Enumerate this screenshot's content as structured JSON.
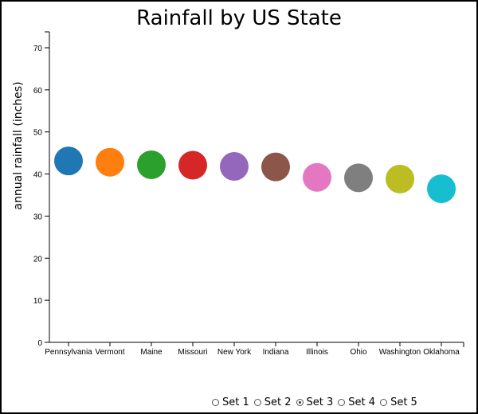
{
  "chart_data": {
    "type": "scatter",
    "title": "Rainfall by US State",
    "xlabel": "",
    "ylabel": "annual rainfall (inches)",
    "ylim": [
      0,
      70
    ],
    "yticks": [
      0,
      10,
      20,
      30,
      40,
      50,
      60,
      70
    ],
    "categories": [
      "Pennsylvania",
      "Vermont",
      "Maine",
      "Missouri",
      "New York",
      "Indiana",
      "Illinois",
      "Ohio",
      "Washington",
      "Oklahoma"
    ],
    "values": [
      43.1,
      42.8,
      42.2,
      42.1,
      41.8,
      41.7,
      39.2,
      39.1,
      38.8,
      36.5
    ],
    "colors": [
      "#1f77b4",
      "#ff7f0e",
      "#2ca02c",
      "#d62728",
      "#9467bd",
      "#8c564b",
      "#e377c2",
      "#7f7f7f",
      "#bcbd22",
      "#17becf"
    ],
    "grid": false,
    "legend": "none"
  },
  "controls": {
    "options": [
      {
        "label": "Set 1",
        "checked": false
      },
      {
        "label": "Set 2",
        "checked": false
      },
      {
        "label": "Set 3",
        "checked": true
      },
      {
        "label": "Set 4",
        "checked": false
      },
      {
        "label": "Set 5",
        "checked": false
      }
    ]
  }
}
